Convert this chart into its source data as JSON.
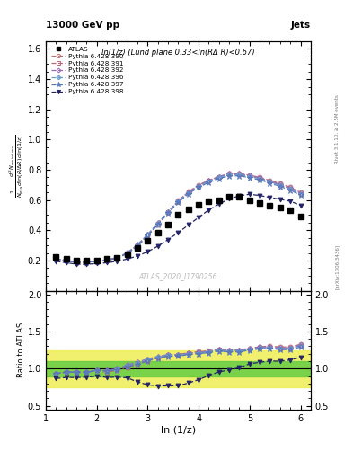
{
  "title_top": "13000 GeV pp",
  "title_right": "Jets",
  "plot_title": "ln(1/z) (Lund plane 0.33<ln(RΔ R)<0.67)",
  "watermark": "ATLAS_2020_I1790256",
  "rivet_label": "Rivet 3.1.10, ≥ 2.5M events",
  "arxiv_label": "[arXiv:1306.3436]",
  "xlabel": "ln (1/z)",
  "ylabel_main": "$\\frac{1}{N_{\\mathrm{jets}}}\\frac{d^2 N_{\\mathrm{emissions}}}{d\\ln(R/\\Delta R)\\,d\\ln(1/z)}$",
  "xlim": [
    1.0,
    6.2
  ],
  "ylim_main": [
    0.0,
    1.65
  ],
  "ylim_ratio": [
    0.45,
    2.05
  ],
  "yticks_main": [
    0.2,
    0.4,
    0.6,
    0.8,
    1.0,
    1.2,
    1.4,
    1.6
  ],
  "yticks_ratio": [
    0.5,
    1.0,
    1.5,
    2.0
  ],
  "xticks": [
    1,
    2,
    3,
    4,
    5,
    6
  ],
  "atlas_x": [
    1.2,
    1.4,
    1.6,
    1.8,
    2.0,
    2.2,
    2.4,
    2.6,
    2.8,
    3.0,
    3.2,
    3.4,
    3.6,
    3.8,
    4.0,
    4.2,
    4.4,
    4.6,
    4.8,
    5.0,
    5.2,
    5.4,
    5.6,
    5.8,
    6.0
  ],
  "atlas_y": [
    0.225,
    0.21,
    0.2,
    0.198,
    0.2,
    0.21,
    0.22,
    0.24,
    0.28,
    0.33,
    0.385,
    0.44,
    0.5,
    0.54,
    0.57,
    0.59,
    0.6,
    0.62,
    0.62,
    0.6,
    0.58,
    0.56,
    0.55,
    0.53,
    0.49
  ],
  "p390_x": [
    1.2,
    1.4,
    1.6,
    1.8,
    2.0,
    2.2,
    2.4,
    2.6,
    2.8,
    3.0,
    3.2,
    3.4,
    3.6,
    3.8,
    4.0,
    4.2,
    4.4,
    4.6,
    4.8,
    5.0,
    5.2,
    5.4,
    5.6,
    5.8,
    6.0
  ],
  "p390_y": [
    0.21,
    0.2,
    0.19,
    0.188,
    0.195,
    0.2,
    0.215,
    0.245,
    0.295,
    0.365,
    0.44,
    0.52,
    0.595,
    0.655,
    0.7,
    0.73,
    0.755,
    0.775,
    0.775,
    0.765,
    0.75,
    0.73,
    0.71,
    0.685,
    0.65
  ],
  "p391_x": [
    1.2,
    1.4,
    1.6,
    1.8,
    2.0,
    2.2,
    2.4,
    2.6,
    2.8,
    3.0,
    3.2,
    3.4,
    3.6,
    3.8,
    4.0,
    4.2,
    4.4,
    4.6,
    4.8,
    5.0,
    5.2,
    5.4,
    5.6,
    5.8,
    6.0
  ],
  "p391_y": [
    0.21,
    0.2,
    0.19,
    0.188,
    0.196,
    0.203,
    0.218,
    0.248,
    0.3,
    0.368,
    0.443,
    0.52,
    0.592,
    0.65,
    0.695,
    0.727,
    0.752,
    0.77,
    0.77,
    0.758,
    0.744,
    0.722,
    0.7,
    0.675,
    0.642
  ],
  "p392_x": [
    1.2,
    1.4,
    1.6,
    1.8,
    2.0,
    2.2,
    2.4,
    2.6,
    2.8,
    3.0,
    3.2,
    3.4,
    3.6,
    3.8,
    4.0,
    4.2,
    4.4,
    4.6,
    4.8,
    5.0,
    5.2,
    5.4,
    5.6,
    5.8,
    6.0
  ],
  "p392_y": [
    0.21,
    0.2,
    0.19,
    0.188,
    0.196,
    0.205,
    0.22,
    0.252,
    0.305,
    0.373,
    0.448,
    0.523,
    0.594,
    0.651,
    0.696,
    0.729,
    0.755,
    0.775,
    0.775,
    0.762,
    0.747,
    0.725,
    0.704,
    0.679,
    0.646
  ],
  "p396_x": [
    1.2,
    1.4,
    1.6,
    1.8,
    2.0,
    2.2,
    2.4,
    2.6,
    2.8,
    3.0,
    3.2,
    3.4,
    3.6,
    3.8,
    4.0,
    4.2,
    4.4,
    4.6,
    4.8,
    5.0,
    5.2,
    5.4,
    5.6,
    5.8,
    6.0
  ],
  "p396_y": [
    0.21,
    0.2,
    0.19,
    0.188,
    0.196,
    0.203,
    0.218,
    0.25,
    0.302,
    0.37,
    0.445,
    0.52,
    0.591,
    0.648,
    0.692,
    0.724,
    0.75,
    0.768,
    0.768,
    0.756,
    0.741,
    0.72,
    0.698,
    0.673,
    0.64
  ],
  "p397_x": [
    1.2,
    1.4,
    1.6,
    1.8,
    2.0,
    2.2,
    2.4,
    2.6,
    2.8,
    3.0,
    3.2,
    3.4,
    3.6,
    3.8,
    4.0,
    4.2,
    4.4,
    4.6,
    4.8,
    5.0,
    5.2,
    5.4,
    5.6,
    5.8,
    6.0
  ],
  "p397_y": [
    0.21,
    0.2,
    0.19,
    0.188,
    0.196,
    0.203,
    0.216,
    0.246,
    0.296,
    0.364,
    0.438,
    0.513,
    0.584,
    0.641,
    0.685,
    0.716,
    0.742,
    0.76,
    0.76,
    0.748,
    0.733,
    0.712,
    0.69,
    0.665,
    0.632
  ],
  "p398_x": [
    1.2,
    1.4,
    1.6,
    1.8,
    2.0,
    2.2,
    2.4,
    2.6,
    2.8,
    3.0,
    3.2,
    3.4,
    3.6,
    3.8,
    4.0,
    4.2,
    4.4,
    4.6,
    4.8,
    5.0,
    5.2,
    5.4,
    5.6,
    5.8,
    6.0
  ],
  "p398_y": [
    0.195,
    0.185,
    0.176,
    0.175,
    0.18,
    0.185,
    0.195,
    0.21,
    0.23,
    0.258,
    0.295,
    0.338,
    0.385,
    0.435,
    0.485,
    0.535,
    0.573,
    0.608,
    0.628,
    0.638,
    0.63,
    0.617,
    0.605,
    0.592,
    0.565
  ],
  "color_390": "#c47070",
  "color_391": "#c47070",
  "color_392": "#9966bb",
  "color_396": "#6699cc",
  "color_397": "#6699cc",
  "color_398": "#222266",
  "color_atlas": "#000000",
  "green_band_lower": 0.9,
  "green_band_upper": 1.1,
  "yellow_band_lower": 0.75,
  "yellow_band_upper": 1.25,
  "ratio_390": [
    0.935,
    0.952,
    0.95,
    0.949,
    0.975,
    0.952,
    0.977,
    1.021,
    1.054,
    1.106,
    1.143,
    1.182,
    1.19,
    1.213,
    1.228,
    1.237,
    1.258,
    1.25,
    1.25,
    1.275,
    1.293,
    1.304,
    1.291,
    1.293,
    1.327
  ],
  "ratio_391": [
    0.935,
    0.952,
    0.95,
    0.949,
    0.98,
    0.967,
    0.991,
    1.033,
    1.071,
    1.115,
    1.15,
    1.182,
    1.184,
    1.204,
    1.219,
    1.232,
    1.253,
    1.242,
    1.242,
    1.263,
    1.283,
    1.289,
    1.273,
    1.274,
    1.31
  ],
  "ratio_392": [
    0.935,
    0.952,
    0.95,
    0.949,
    0.98,
    0.976,
    1.0,
    1.05,
    1.089,
    1.13,
    1.164,
    1.189,
    1.188,
    1.206,
    1.221,
    1.235,
    1.258,
    1.25,
    1.25,
    1.27,
    1.288,
    1.295,
    1.28,
    1.281,
    1.318
  ],
  "ratio_396": [
    0.935,
    0.952,
    0.95,
    0.949,
    0.98,
    0.967,
    0.991,
    1.042,
    1.079,
    1.121,
    1.156,
    1.182,
    1.182,
    1.2,
    1.214,
    1.227,
    1.25,
    1.239,
    1.239,
    1.26,
    1.278,
    1.286,
    1.269,
    1.27,
    1.306
  ],
  "ratio_397": [
    0.935,
    0.952,
    0.95,
    0.949,
    0.98,
    0.967,
    0.982,
    1.025,
    1.057,
    1.103,
    1.138,
    1.166,
    1.168,
    1.187,
    1.202,
    1.214,
    1.237,
    1.226,
    1.226,
    1.247,
    1.264,
    1.271,
    1.255,
    1.255,
    1.29
  ],
  "ratio_398": [
    0.867,
    0.881,
    0.88,
    0.884,
    0.9,
    0.881,
    0.886,
    0.875,
    0.821,
    0.782,
    0.766,
    0.768,
    0.77,
    0.806,
    0.851,
    0.907,
    0.955,
    0.981,
    1.013,
    1.063,
    1.086,
    1.102,
    1.1,
    1.117,
    1.153
  ]
}
